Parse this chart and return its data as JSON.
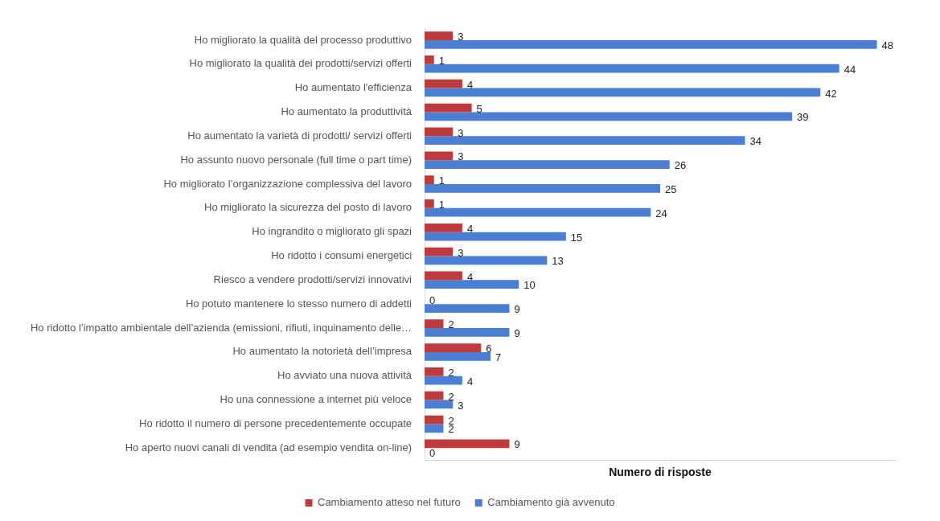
{
  "chart_data": {
    "type": "bar",
    "orientation": "horizontal",
    "xlabel": "Numero di risposte",
    "categories": [
      "Ho migliorato la qualità del processo produttivo",
      "Ho migliorato la qualità dei prodotti/servizi offerti",
      "Ho aumentato l'efficienza",
      "Ho aumentato la produttività",
      "Ho aumentato la varietà di prodotti/ servizi offerti",
      "Ho assunto nuovo personale (full time o part time)",
      "Ho migliorato l’organizzazione complessiva del lavoro",
      "Ho migliorato la sicurezza del posto di lavoro",
      "Ho ingrandito o migliorato gli spazi",
      "Ho ridotto i consumi energetici",
      "Riesco a vendere prodotti/servizi innovativi",
      "Ho potuto mantenere lo stesso numero di addetti",
      "Ho ridotto l’impatto ambientale dell’azienda (emissioni, rifiuti, inquinamento delle…",
      "Ho aumentato la notorietà dell’impresa",
      "Ho avviato una nuova attività",
      "Ho una connessione a internet più veloce",
      "Ho ridotto il numero di persone precedentemente occupate",
      "Ho aperto nuovi canali di vendita (ad esempio vendita on-line)"
    ],
    "series": [
      {
        "name": "Cambiamento atteso nel futuro",
        "color": "#c0393b",
        "values": [
          3,
          1,
          4,
          5,
          3,
          3,
          1,
          1,
          4,
          3,
          4,
          0,
          2,
          6,
          2,
          2,
          2,
          9
        ]
      },
      {
        "name": "Cambiamento già avvenuto",
        "color": "#4a7fd4",
        "values": [
          48,
          44,
          42,
          39,
          34,
          26,
          25,
          24,
          15,
          13,
          10,
          9,
          9,
          7,
          4,
          3,
          2,
          0
        ]
      }
    ],
    "data_labels": true,
    "tick_labels": "y",
    "grid": false,
    "legend": "bottom"
  }
}
